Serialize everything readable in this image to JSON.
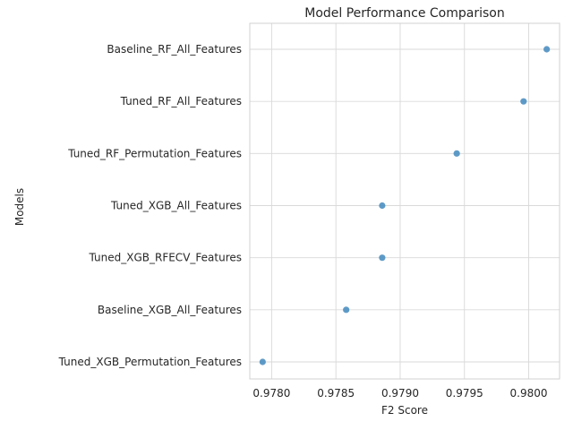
{
  "chart_data": {
    "type": "scatter",
    "title": "Model Performance Comparison",
    "xlabel": "F2 Score",
    "ylabel": "Models",
    "categories": [
      "Baseline_RF_All_Features",
      "Tuned_RF_All_Features",
      "Tuned_RF_Permutation_Features",
      "Tuned_XGB_All_Features",
      "Tuned_XGB_RFECV_Features",
      "Baseline_XGB_All_Features",
      "Tuned_XGB_Permutation_Features"
    ],
    "values": [
      0.98014,
      0.97996,
      0.97944,
      0.97886,
      0.97886,
      0.97858,
      0.97793
    ],
    "xlim": [
      0.97783,
      0.98024
    ],
    "xticks": [
      0.978,
      0.9785,
      0.979,
      0.9795,
      0.98
    ],
    "xtick_labels": [
      "0.9780",
      "0.9785",
      "0.9790",
      "0.9795",
      "0.9800"
    ],
    "grid": true,
    "point_color": "#4c8fc1"
  }
}
